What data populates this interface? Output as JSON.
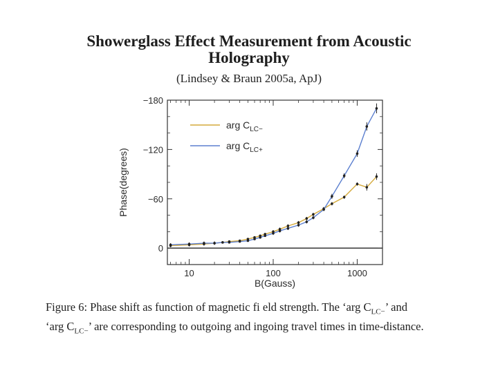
{
  "slide": {
    "title_line1": "Showerglass Effect Measurement from Acoustic",
    "title_line2": "Holography",
    "subtitle": "(Lindsey & Braun 2005a, ApJ)"
  },
  "caption": {
    "line1_a": "Figure 6:  Phase shift as function of magnetic fi eld strength.  The ‘arg C",
    "line1_sub": "LC−",
    "line1_b": "’ and",
    "line2_a": "‘arg C",
    "line2_sub": "LC−",
    "line2_b": "’ are corresponding to outgoing and ingoing travel times in time-distance."
  },
  "chart_data": {
    "type": "line",
    "xscale": "log",
    "xlim": [
      5.5,
      2000
    ],
    "ylim": [
      -180,
      20
    ],
    "xlabel": "B(Gauss)",
    "ylabel": "Phase(degrees)",
    "xticks": [
      10,
      100,
      1000
    ],
    "xtick_labels": [
      "10",
      "100",
      "1000"
    ],
    "yticks": [
      -180,
      -120,
      -60,
      0
    ],
    "ytick_labels": [
      "−180",
      "−120",
      "−60",
      "0"
    ],
    "reference_line_y": 0,
    "legend": {
      "position": "top-left"
    },
    "series": [
      {
        "name": "arg C",
        "sub": "LC−",
        "color": "#d4a93a",
        "x": [
          6,
          10,
          15,
          20,
          25,
          30,
          40,
          50,
          60,
          70,
          80,
          100,
          120,
          150,
          200,
          250,
          300,
          400,
          500,
          700,
          1000,
          1300,
          1700
        ],
        "y": [
          -3,
          -4,
          -5,
          -6,
          -7,
          -8,
          -9,
          -11,
          -13,
          -15,
          -17,
          -20,
          -23,
          -27,
          -31,
          -36,
          -41,
          -48,
          -54,
          -62,
          -78,
          -74,
          -87
        ],
        "err": [
          2,
          2,
          2,
          2,
          1,
          1,
          1,
          1,
          1,
          1,
          1,
          2,
          2,
          2,
          2,
          2,
          2,
          2,
          2,
          2,
          2,
          4,
          4
        ]
      },
      {
        "name": "arg C",
        "sub": "LC+",
        "color": "#5b7fcf",
        "x": [
          6,
          10,
          15,
          20,
          25,
          30,
          40,
          50,
          60,
          70,
          80,
          100,
          120,
          150,
          200,
          250,
          300,
          400,
          500,
          700,
          1000,
          1300,
          1700
        ],
        "y": [
          -4,
          -5,
          -6,
          -6,
          -7,
          -7,
          -8,
          -9,
          -11,
          -13,
          -15,
          -18,
          -21,
          -24,
          -28,
          -32,
          -37,
          -47,
          -63,
          -88,
          -115,
          -148,
          -170
        ],
        "err": [
          2,
          2,
          2,
          2,
          1,
          1,
          1,
          1,
          1,
          1,
          1,
          2,
          2,
          2,
          2,
          2,
          2,
          2,
          3,
          3,
          4,
          5,
          6
        ]
      }
    ]
  }
}
